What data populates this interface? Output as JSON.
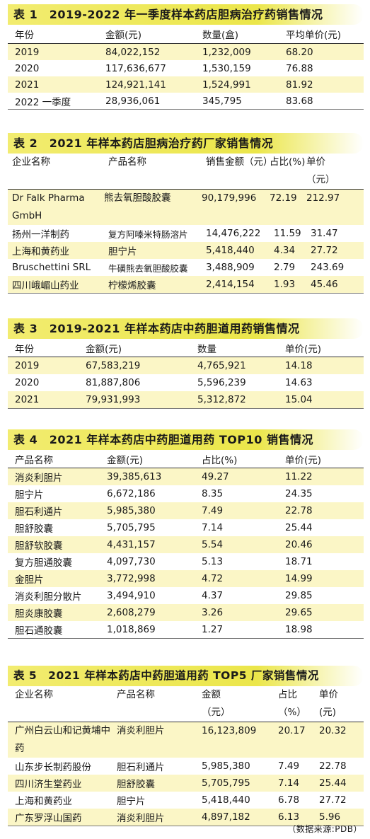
{
  "t1": {
    "title": "表 1　2019-2022 年一季度样本药店胆病治疗药销售情况",
    "headers": [
      "年份",
      "金额(元)",
      "数量(盒)",
      "平均单价(元)"
    ],
    "rows": [
      [
        "2019",
        "84,022,152",
        "1,232,009",
        "68.20"
      ],
      [
        "2020",
        "117,636,677",
        "1,530,159",
        "76.88"
      ],
      [
        "2021",
        "124,921,141",
        "1,524,991",
        "81.92"
      ],
      [
        "2022 一季度",
        "28,936,061",
        "345,795",
        "83.68"
      ]
    ]
  },
  "t2": {
    "title": "表 2　2021 年样本药店胆病治疗药厂家销售情况",
    "headers": [
      "企业名称",
      "产品名称",
      "销售金额（元）",
      "占比(%)",
      "单价（元）"
    ],
    "rows": [
      [
        "Dr Falk Pharma GmbH",
        "熊去氧胆酸胶囊",
        "90,179,996",
        "72.19",
        "212.97"
      ],
      [
        "扬州一洋制药",
        "复方阿嗪米特肠溶片",
        "14,476,222",
        "11.59",
        "31.47"
      ],
      [
        "上海和黄药业",
        "胆宁片",
        "5,418,440",
        "4.34",
        "27.72"
      ],
      [
        "Bruschettini SRL",
        "牛磺熊去氧胆酸胶囊",
        "3,488,909",
        "2.79",
        "243.69"
      ],
      [
        "四川峨嵋山药业",
        "柠檬烯胶囊",
        "2,414,154",
        "1.93",
        "45.46"
      ]
    ]
  },
  "t3": {
    "title": "表 3　2019-2021 年样本药店中药胆道用药销售情况",
    "headers": [
      "年份",
      "金额(元)",
      "数量",
      "单价(元)"
    ],
    "rows": [
      [
        "2019",
        "67,583,219",
        "4,765,921",
        "14.18"
      ],
      [
        "2020",
        "81,887,806",
        "5,596,239",
        "14.63"
      ],
      [
        "2021",
        "79,931,993",
        "5,312,872",
        "15.04"
      ]
    ]
  },
  "t4": {
    "title": "表 4　2021 年样本药店中药胆道用药 TOP10 销售情况",
    "headers": [
      "产品名称",
      "金额(元)",
      "占比(%)",
      "单价(元)"
    ],
    "rows": [
      [
        "消炎利胆片",
        "39,385,613",
        "49.27",
        "11.22"
      ],
      [
        "胆宁片",
        "6,672,186",
        "8.35",
        "24.35"
      ],
      [
        "胆石利通片",
        "5,985,380",
        "7.49",
        "22.78"
      ],
      [
        "胆舒胶囊",
        "5,705,795",
        "7.14",
        "25.44"
      ],
      [
        "胆舒软胶囊",
        "4,431,157",
        "5.54",
        "20.46"
      ],
      [
        "复方胆通胶囊",
        "4,097,730",
        "5.13",
        "18.71"
      ],
      [
        "金胆片",
        "3,772,998",
        "4.72",
        "14.99"
      ],
      [
        "消炎利胆分散片",
        "3,494,910",
        "4.37",
        "29.85"
      ],
      [
        "胆炎康胶囊",
        "2,608,279",
        "3.26",
        "29.65"
      ],
      [
        "胆石通胶囊",
        "1,018,869",
        "1.27",
        "18.98"
      ]
    ]
  },
  "t5": {
    "title": "表 5　2021 年样本药店中药胆道用药 TOP5 厂家销售情况",
    "headers": [
      "企业名称",
      "产品名称",
      "金额（元）",
      "占比（%）",
      "单价(元)"
    ],
    "rows": [
      [
        "广州白云山和记黄埔中药",
        "消炎利胆片",
        "16,123,809",
        "20.17",
        "20.32"
      ],
      [
        "山东步长制药股份",
        "胆石利通片",
        "5,985,380",
        "7.49",
        "22.78"
      ],
      [
        "四川济生堂药业",
        "胆舒胶囊",
        "5,705,795",
        "7.14",
        "25.44"
      ],
      [
        "上海和黄药业",
        "胆宁片",
        "5,418,440",
        "6.78",
        "27.72"
      ],
      [
        "广东罗浮山国药",
        "消炎利胆片",
        "4,897,182",
        "6.13",
        "5.96"
      ]
    ]
  },
  "source": "（数据来源:PDB）"
}
